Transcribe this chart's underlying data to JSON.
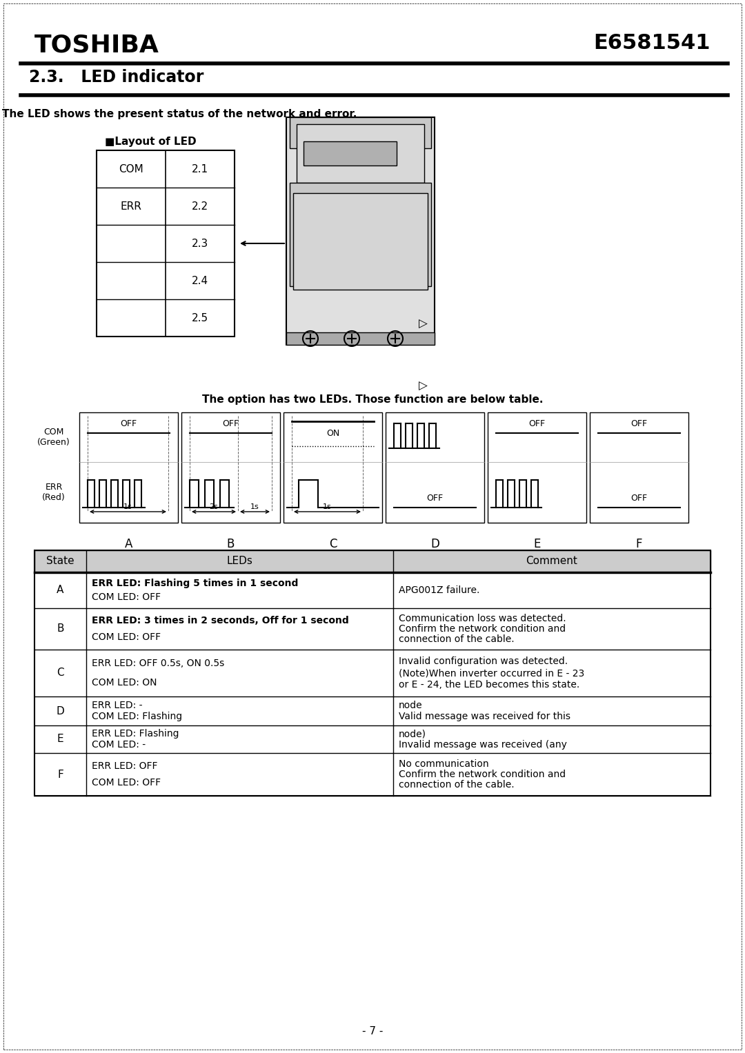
{
  "title_company": "TOSHIBA",
  "title_code": "E6581541",
  "section": "2.3.   LED indicator",
  "intro_text": "The LED shows the present status of the network and error.",
  "layout_title": "■Layout of LED",
  "led_labels": [
    "COM",
    "ERR",
    "2.1",
    "2.2",
    "2.3",
    "2.4",
    "2.5"
  ],
  "option_text": "The option has two LEDs. Those function are below table.",
  "com_label": "COM\n(Green)",
  "err_label": "ERR\n(Red)",
  "waveform_labels": [
    "A",
    "B",
    "C",
    "D",
    "E",
    "F"
  ],
  "table_headers": [
    "State",
    "LEDs",
    "Comment"
  ],
  "table_rows": [
    [
      "A",
      "COM LED: OFF\nERR LED: Flashing 5 times in 1 second",
      "APG001Z failure."
    ],
    [
      "B",
      "COM LED: OFF\nERR LED: 3 times in 2 seconds, Off for 1 second",
      "Communication loss was detected.\nConfirm the network condition and\nconnection of the cable."
    ],
    [
      "C",
      "COM LED: ON\nERR LED: OFF 0.5s, ON 0.5s",
      "Invalid configuration was detected.\n(Note)When inverter occurred in E - 23\nor E - 24, the LED becomes this state."
    ],
    [
      "D",
      "COM LED: Flashing\nERR LED: -",
      "Valid message was received for this\nnode"
    ],
    [
      "E",
      "COM LED: -\nERR LED: Flashing",
      "Invalid message was received (any\nnode)"
    ],
    [
      "F",
      "COM LED: OFF\nERR LED: OFF",
      "No communication\nConfirm the network condition and\nconnection of the cable."
    ]
  ],
  "bg_color": "#ffffff",
  "text_color": "#000000",
  "line_color": "#000000"
}
